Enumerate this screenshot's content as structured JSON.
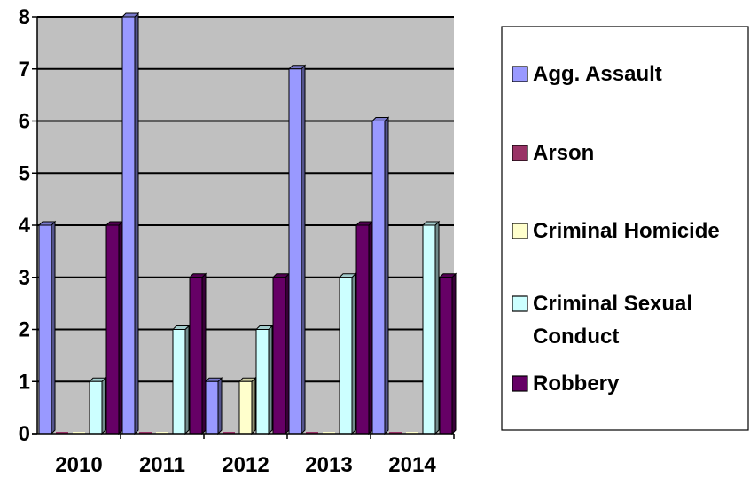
{
  "chart_data": {
    "type": "bar",
    "title": "",
    "xlabel": "",
    "ylabel": "",
    "categories": [
      "2010",
      "2011",
      "2012",
      "2013",
      "2014"
    ],
    "ylim": [
      0,
      8
    ],
    "yticks": [
      "0",
      "1",
      "2",
      "3",
      "4",
      "5",
      "6",
      "7",
      "8"
    ],
    "grid": true,
    "legend_position": "right",
    "series": [
      {
        "name": "Agg. Assault",
        "values": [
          4,
          8,
          1,
          7,
          6
        ],
        "color": "#9999ff"
      },
      {
        "name": "Arson",
        "values": [
          0,
          0,
          0,
          0,
          0
        ],
        "color": "#993366"
      },
      {
        "name": "Criminal Homicide",
        "values": [
          0,
          0,
          1,
          0,
          0
        ],
        "color": "#ffffcc"
      },
      {
        "name": "Criminal Sexual Conduct",
        "values": [
          1,
          2,
          2,
          3,
          4
        ],
        "color": "#ccffff"
      },
      {
        "name": "Robbery",
        "values": [
          4,
          3,
          3,
          4,
          3
        ],
        "color": "#660066"
      }
    ],
    "legend_lines": [
      [
        "Agg. Assault"
      ],
      [
        "Arson"
      ],
      [
        "Criminal Homicide"
      ],
      [
        "Criminal Sexual",
        "Conduct"
      ],
      [
        "Robbery"
      ]
    ]
  }
}
